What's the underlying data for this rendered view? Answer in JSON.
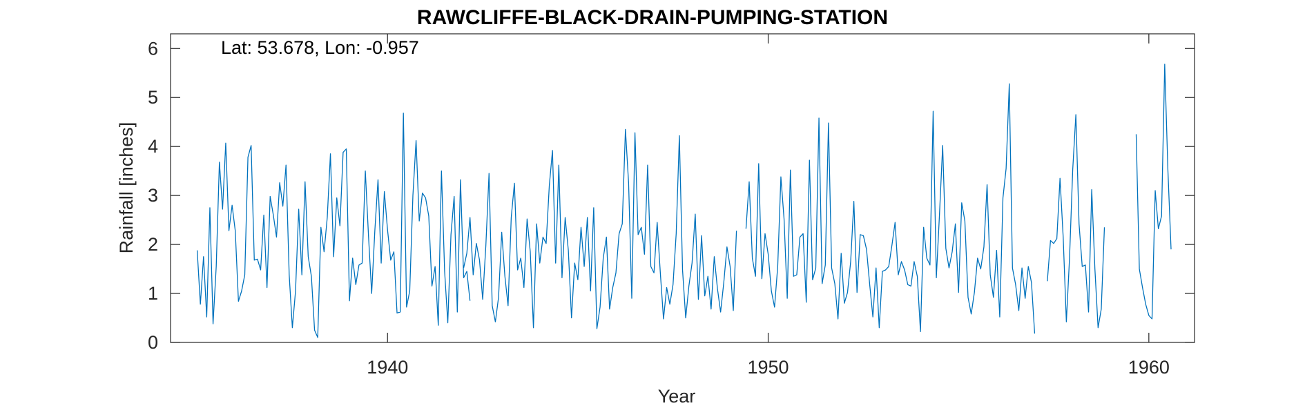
{
  "chart_data": {
    "type": "line",
    "title": "RAWCLIFFE-BLACK-DRAIN-PUMPING-STATION",
    "xlabel": "Year",
    "ylabel": "Rainfall [inches]",
    "annotation": "Lat: 53.678, Lon: -0.957",
    "xlim": [
      1934.3,
      1961.2
    ],
    "ylim": [
      0,
      6.3
    ],
    "xticks": [
      1940,
      1950,
      1960
    ],
    "xtick_labels": [
      "1940",
      "1950",
      "1960"
    ],
    "yticks": [
      0,
      1,
      2,
      3,
      4,
      5,
      6
    ],
    "ytick_labels": [
      "0",
      "1",
      "2",
      "3",
      "4",
      "5",
      "6"
    ],
    "grid": false,
    "color": "#0072BD",
    "series": [
      {
        "start_year": 1935,
        "values": [
          1.88,
          0.78,
          1.75,
          0.52,
          2.75,
          0.38,
          1.55,
          3.68,
          2.72,
          4.07,
          2.28,
          2.8,
          2.28,
          0.84,
          1.05,
          1.38,
          3.78,
          4.02,
          1.68,
          1.7,
          1.48,
          2.6,
          1.12,
          2.98,
          2.6,
          2.15,
          3.26,
          2.78,
          3.62,
          1.38,
          0.3,
          1.05,
          2.72,
          1.38,
          3.28,
          1.75,
          1.35,
          0.25,
          0.1,
          2.35,
          1.85,
          2.55,
          3.85,
          1.75,
          2.95,
          2.38,
          3.88,
          3.95,
          0.85,
          1.72,
          1.18,
          1.58,
          1.62,
          3.5,
          2.18,
          1.0,
          2.28,
          3.32,
          1.62,
          3.08,
          2.3,
          1.68,
          1.85,
          0.6,
          0.62,
          4.68,
          0.72,
          1.05,
          3.0,
          4.12,
          2.48,
          3.05,
          2.95,
          2.58,
          1.15,
          1.55,
          0.35,
          3.5,
          1.45,
          0.4,
          2.2,
          2.98,
          0.62,
          3.32,
          1.32,
          1.45,
          0.85
        ],
        "gap_after": 3
      },
      {
        "start_year": 1942,
        "values": [
          1.52,
          1.82,
          2.55,
          1.38,
          2.02,
          1.68,
          0.88,
          1.98,
          3.45,
          0.75,
          0.42,
          0.92,
          2.25,
          1.35,
          0.75,
          2.55,
          3.25,
          1.48,
          1.72,
          1.12,
          2.52,
          1.85,
          0.3,
          2.42,
          1.62,
          2.15,
          2.02,
          3.2,
          3.92,
          1.62,
          3.62,
          1.32,
          2.55,
          1.88,
          0.5,
          1.62,
          1.28,
          2.35,
          1.55,
          2.55,
          1.05,
          2.75,
          0.28,
          0.72,
          1.72,
          2.15,
          0.68,
          1.12,
          1.42,
          2.22,
          2.42,
          4.35,
          3.25,
          0.9,
          4.28,
          2.2,
          2.35,
          1.8,
          3.62,
          1.55,
          1.42,
          2.45,
          1.42,
          0.48,
          1.12,
          0.78,
          1.18,
          2.22,
          4.22,
          1.48,
          0.5,
          1.15,
          1.62,
          2.62,
          0.88,
          2.18,
          0.95,
          1.35,
          0.68,
          1.75,
          1.1,
          0.62,
          1.22,
          1.95,
          1.55,
          0.65,
          2.28
        ],
        "gap_after": 2
      },
      {
        "start_year": 1949.417,
        "values": [
          2.32,
          3.28,
          1.72,
          1.35,
          3.65,
          1.3,
          2.22,
          1.8,
          1.05,
          0.72,
          1.55,
          3.38,
          2.52,
          0.9,
          3.52,
          1.35,
          1.38,
          2.15,
          2.22,
          0.82,
          3.72,
          1.28,
          1.52,
          4.58,
          1.2,
          1.58,
          4.48,
          1.52,
          1.2,
          0.48,
          1.82,
          0.8,
          1.02,
          1.65,
          2.88,
          1.02,
          2.2,
          2.18,
          1.9,
          1.18,
          0.52,
          1.52,
          0.3,
          1.45,
          1.48,
          1.55,
          1.98,
          2.45,
          1.38,
          1.65,
          1.48,
          1.18,
          1.15,
          1.65,
          1.35,
          0.22,
          2.35,
          1.72,
          1.58,
          4.72,
          1.32,
          2.62,
          4.02,
          1.92,
          1.52,
          1.85,
          2.42,
          1.02,
          2.85,
          2.48,
          0.92,
          0.58,
          1.02,
          1.72,
          1.5,
          1.95,
          3.22,
          1.38,
          0.92,
          1.88,
          0.52,
          2.95,
          3.55,
          5.28,
          1.52,
          1.18,
          0.65,
          1.52,
          0.9,
          1.55,
          1.22,
          0.18
        ]
      },
      {
        "start_year": 1957.333,
        "values": [
          1.25,
          2.08,
          2.02,
          2.12,
          3.35,
          2.15,
          0.42,
          1.72,
          3.52,
          4.65,
          2.42,
          1.55,
          1.58,
          0.62,
          3.12,
          1.5,
          0.3,
          0.68,
          2.35
        ],
        "gap_after": 10
      },
      {
        "start_year": 1959.667,
        "values": [
          4.25,
          1.5,
          1.12,
          0.78,
          0.55,
          0.48,
          3.1,
          2.32,
          2.58,
          5.68,
          3.52,
          1.9
        ]
      }
    ]
  }
}
